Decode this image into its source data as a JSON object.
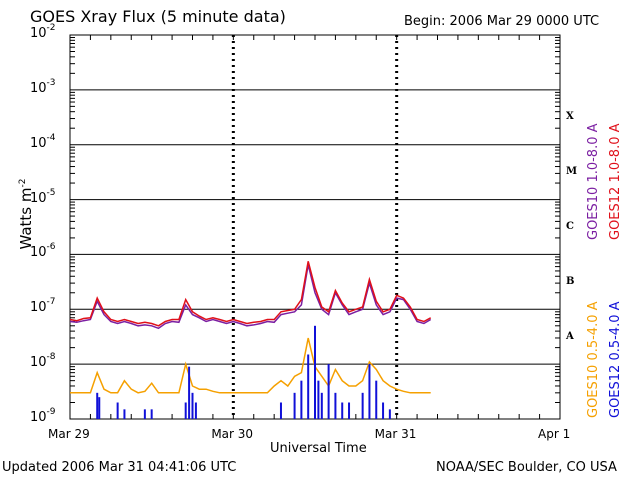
{
  "header": {
    "title": "GOES Xray Flux (5 minute data)",
    "begin": "Begin:  2006 Mar 29 0000 UTC"
  },
  "footer": {
    "updated": "Updated 2006 Mar 31 04:41:06 UTC",
    "credit": "NOAA/SEC Boulder, CO USA"
  },
  "flare_classes": [
    "X",
    "M",
    "C",
    "B",
    "A"
  ],
  "legend": [
    {
      "label": "GOES10 1.0-8.0 A",
      "color": "#7b1fa2"
    },
    {
      "label": "GOES12 1.0-8.0 A",
      "color": "#e0101a"
    },
    {
      "label": "GOES10 0.5-4.0 A",
      "color": "#f5a000"
    },
    {
      "label": "GOES12 0.5-4.0 A",
      "color": "#1010d8"
    }
  ],
  "chart_data": {
    "type": "line",
    "xlabel": "Universal Time",
    "ylabel": "Watts m",
    "ylabel_sup": "-2",
    "yscale": "log",
    "ylim": [
      1e-09,
      0.01
    ],
    "xlim": [
      0,
      72
    ],
    "x_unit": "hours since 2006 Mar 29 0000 UTC",
    "x_ticks": [
      {
        "x": 0,
        "label": "Mar 29"
      },
      {
        "x": 24,
        "label": "Mar 30"
      },
      {
        "x": 48,
        "label": "Mar 31"
      },
      {
        "x": 72,
        "label": "Apr 1"
      }
    ],
    "y_ticks": [
      {
        "exp": -2,
        "label": "10",
        "sup": "-2"
      },
      {
        "exp": -3,
        "label": "10",
        "sup": "-3"
      },
      {
        "exp": -4,
        "label": "10",
        "sup": "-4"
      },
      {
        "exp": -5,
        "label": "10",
        "sup": "-5"
      },
      {
        "exp": -6,
        "label": "10",
        "sup": "-6"
      },
      {
        "exp": -7,
        "label": "10",
        "sup": "-7"
      },
      {
        "exp": -8,
        "label": "10",
        "sup": "-8"
      },
      {
        "exp": -9,
        "label": "10",
        "sup": "-9"
      }
    ],
    "grid": true,
    "series": [
      {
        "name": "GOES10 1.0-8.0 A",
        "color": "#7b1fa2",
        "x": [
          0,
          1,
          2,
          3,
          4,
          5,
          6,
          7,
          8,
          9,
          10,
          11,
          12,
          13,
          14,
          15,
          16,
          17,
          18,
          19,
          20,
          21,
          22,
          23,
          24,
          25,
          26,
          27,
          28,
          29,
          30,
          31,
          32,
          33,
          34,
          35,
          36,
          37,
          38,
          39,
          40,
          41,
          42,
          43,
          44,
          45,
          46,
          47,
          48,
          49,
          50,
          51,
          52,
          53
        ],
        "y": [
          6e-08,
          5.8e-08,
          6.2e-08,
          6.5e-08,
          1.4e-07,
          8e-08,
          6e-08,
          5.5e-08,
          6e-08,
          5.5e-08,
          5e-08,
          5.2e-08,
          5e-08,
          4.5e-08,
          5.5e-08,
          6e-08,
          5.8e-08,
          1.2e-07,
          8e-08,
          7e-08,
          6e-08,
          6.5e-08,
          6e-08,
          5.5e-08,
          6e-08,
          5.5e-08,
          5e-08,
          5.2e-08,
          5.5e-08,
          6e-08,
          5.8e-08,
          8e-08,
          8.5e-08,
          9e-08,
          1.2e-07,
          6.5e-07,
          2e-07,
          1e-07,
          8e-08,
          2e-07,
          1.2e-07,
          8e-08,
          9e-08,
          1e-07,
          3e-07,
          1.2e-07,
          8e-08,
          9e-08,
          1.6e-07,
          1.5e-07,
          1e-07,
          6e-08,
          5.5e-08,
          6.5e-08
        ]
      },
      {
        "name": "GOES12 1.0-8.0 A",
        "color": "#e0101a",
        "x": [
          0,
          1,
          2,
          3,
          4,
          5,
          6,
          7,
          8,
          9,
          10,
          11,
          12,
          13,
          14,
          15,
          16,
          17,
          18,
          19,
          20,
          21,
          22,
          23,
          24,
          25,
          26,
          27,
          28,
          29,
          30,
          31,
          32,
          33,
          34,
          35,
          36,
          37,
          38,
          39,
          40,
          41,
          42,
          43,
          44,
          45,
          46,
          47,
          48,
          49,
          50,
          51,
          52,
          53
        ],
        "y": [
          6.5e-08,
          6.2e-08,
          6.8e-08,
          7e-08,
          1.6e-07,
          9e-08,
          6.5e-08,
          6e-08,
          6.5e-08,
          6e-08,
          5.5e-08,
          5.8e-08,
          5.5e-08,
          5e-08,
          6e-08,
          6.5e-08,
          6.5e-08,
          1.5e-07,
          9e-08,
          7.5e-08,
          6.5e-08,
          7e-08,
          6.5e-08,
          6e-08,
          6.5e-08,
          6e-08,
          5.5e-08,
          5.8e-08,
          6e-08,
          6.5e-08,
          6.5e-08,
          9e-08,
          9.5e-08,
          1e-07,
          1.5e-07,
          7.5e-07,
          2.5e-07,
          1.1e-07,
          9e-08,
          2.2e-07,
          1.3e-07,
          9e-08,
          1e-07,
          1.1e-07,
          3.5e-07,
          1.4e-07,
          9e-08,
          1e-07,
          1.8e-07,
          1.6e-07,
          1.1e-07,
          6.5e-08,
          6e-08,
          7e-08
        ]
      },
      {
        "name": "GOES10 0.5-4.0 A",
        "color": "#f5a000",
        "x": [
          0,
          3,
          4,
          5,
          6,
          7,
          8,
          9,
          10,
          11,
          12,
          13,
          14,
          16,
          17,
          18,
          19,
          20,
          21,
          22,
          23,
          24,
          25,
          26,
          27,
          28,
          29,
          30,
          31,
          32,
          33,
          34,
          35,
          36,
          37,
          38,
          39,
          40,
          41,
          42,
          43,
          44,
          45,
          46,
          47,
          48,
          49,
          50,
          51,
          52,
          53
        ],
        "y": [
          3e-09,
          3e-09,
          7e-09,
          3.5e-09,
          3e-09,
          3e-09,
          5e-09,
          3.5e-09,
          3e-09,
          3.2e-09,
          4.5e-09,
          3e-09,
          3e-09,
          3e-09,
          1e-08,
          4e-09,
          3.5e-09,
          3.5e-09,
          3.2e-09,
          3e-09,
          3e-09,
          3e-09,
          3e-09,
          3e-09,
          3e-09,
          3e-09,
          3e-09,
          4e-09,
          5e-09,
          4e-09,
          6e-09,
          7e-09,
          3e-08,
          9e-09,
          6e-09,
          4e-09,
          8e-09,
          5e-09,
          4e-09,
          4e-09,
          5e-09,
          1.1e-08,
          8e-09,
          5e-09,
          4e-09,
          3.5e-09,
          3.2e-09,
          3e-09,
          3e-09,
          3e-09,
          3e-09
        ]
      },
      {
        "name": "GOES12 0.5-4.0 A",
        "color": "#1010d8",
        "x": [
          4,
          4.3,
          7,
          8,
          11,
          12,
          17,
          17.5,
          18,
          18.5,
          31,
          33,
          34,
          35,
          36,
          36.5,
          37,
          38,
          39,
          40,
          41,
          43,
          44,
          45,
          46,
          47
        ],
        "y": [
          3e-09,
          2.5e-09,
          2e-09,
          1.5e-09,
          1.5e-09,
          1.5e-09,
          2e-09,
          9e-09,
          3e-09,
          2e-09,
          2e-09,
          3e-09,
          5e-09,
          1.5e-08,
          5e-08,
          5e-09,
          3e-09,
          1e-08,
          3e-09,
          2e-09,
          2e-09,
          3e-09,
          1e-08,
          5e-09,
          2e-09,
          1.5e-09
        ]
      }
    ]
  }
}
